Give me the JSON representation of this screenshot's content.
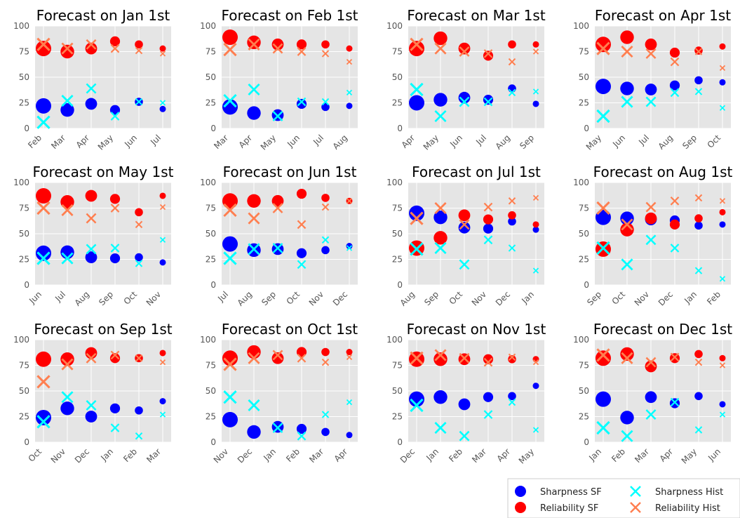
{
  "colors": {
    "sharpness_sf": "#0000ff",
    "reliability_sf": "#ff0000",
    "sharpness_hist": "#00ffff",
    "reliability_hist": "#ff7f50",
    "panel_bg": "#e5e5e5",
    "grid": "#ffffff",
    "tick_text": "#555555"
  },
  "legend": {
    "items": [
      {
        "key": "sharpness_sf",
        "label": "Sharpness SF",
        "marker": "circle"
      },
      {
        "key": "reliability_sf",
        "label": "Reliability SF",
        "marker": "circle"
      },
      {
        "key": "sharpness_hist",
        "label": "Sharpness Hist",
        "marker": "x"
      },
      {
        "key": "reliability_hist",
        "label": "Reliability Hist",
        "marker": "x"
      }
    ]
  },
  "chart_data": [
    {
      "type": "scatter",
      "title": "Forecast on Jan 1st",
      "ylim": [
        0,
        100
      ],
      "yticks": [
        0,
        25,
        50,
        75,
        100
      ],
      "categories": [
        "Feb",
        "Mar",
        "Apr",
        "May",
        "Jun",
        "Jul"
      ],
      "series": [
        {
          "name": "Sharpness SF",
          "values": [
            22,
            18,
            24,
            18,
            26,
            19
          ]
        },
        {
          "name": "Reliability SF",
          "values": [
            78,
            75,
            78,
            85,
            82,
            78
          ]
        },
        {
          "name": "Sharpness Hist",
          "values": [
            6,
            27,
            39,
            12,
            26,
            25
          ]
        },
        {
          "name": "Reliability Hist",
          "values": [
            82,
            78,
            82,
            78,
            76,
            73
          ]
        }
      ]
    },
    {
      "type": "scatter",
      "title": "Forecast on Feb 1st",
      "ylim": [
        0,
        100
      ],
      "yticks": [
        0,
        25,
        50,
        75,
        100
      ],
      "categories": [
        "Mar",
        "Apr",
        "May",
        "Jun",
        "Jul",
        "Aug"
      ],
      "series": [
        {
          "name": "Sharpness SF",
          "values": [
            21,
            15,
            13,
            24,
            21,
            22
          ]
        },
        {
          "name": "Reliability SF",
          "values": [
            89,
            84,
            82,
            82,
            82,
            78
          ]
        },
        {
          "name": "Sharpness Hist",
          "values": [
            27,
            38,
            12,
            26,
            26,
            35
          ]
        },
        {
          "name": "Reliability Hist",
          "values": [
            77,
            82,
            78,
            75,
            73,
            65
          ]
        }
      ]
    },
    {
      "type": "scatter",
      "title": "Forecast on Mar 1st",
      "ylim": [
        0,
        100
      ],
      "yticks": [
        0,
        25,
        50,
        75,
        100
      ],
      "categories": [
        "Apr",
        "May",
        "Jun",
        "Jul",
        "Aug",
        "Sep"
      ],
      "series": [
        {
          "name": "Sharpness SF",
          "values": [
            25,
            28,
            30,
            28,
            39,
            24
          ]
        },
        {
          "name": "Reliability SF",
          "values": [
            78,
            88,
            78,
            71,
            82,
            82
          ]
        },
        {
          "name": "Sharpness Hist",
          "values": [
            38,
            12,
            26,
            26,
            35,
            36
          ]
        },
        {
          "name": "Reliability Hist",
          "values": [
            82,
            78,
            75,
            73,
            65,
            75
          ]
        }
      ]
    },
    {
      "type": "scatter",
      "title": "Forecast on Apr 1st",
      "ylim": [
        0,
        100
      ],
      "yticks": [
        0,
        25,
        50,
        75,
        100
      ],
      "categories": [
        "May",
        "Jun",
        "Jul",
        "Aug",
        "Sep",
        "Oct"
      ],
      "series": [
        {
          "name": "Sharpness SF",
          "values": [
            41,
            39,
            38,
            42,
            47,
            45
          ]
        },
        {
          "name": "Reliability SF",
          "values": [
            82,
            89,
            82,
            74,
            76,
            80
          ]
        },
        {
          "name": "Sharpness Hist",
          "values": [
            12,
            26,
            26,
            35,
            36,
            20
          ]
        },
        {
          "name": "Reliability Hist",
          "values": [
            78,
            75,
            73,
            65,
            75,
            59
          ]
        }
      ]
    },
    {
      "type": "scatter",
      "title": "Forecast on May 1st",
      "ylim": [
        0,
        100
      ],
      "yticks": [
        0,
        25,
        50,
        75,
        100
      ],
      "categories": [
        "Jun",
        "Jul",
        "Aug",
        "Sep",
        "Oct",
        "Nov"
      ],
      "series": [
        {
          "name": "Sharpness SF",
          "values": [
            31,
            32,
            27,
            26,
            27,
            22
          ]
        },
        {
          "name": "Reliability SF",
          "values": [
            87,
            81,
            87,
            84,
            71,
            87
          ]
        },
        {
          "name": "Sharpness Hist",
          "values": [
            26,
            26,
            35,
            36,
            21,
            44
          ]
        },
        {
          "name": "Reliability Hist",
          "values": [
            75,
            73,
            65,
            75,
            59,
            76
          ]
        }
      ]
    },
    {
      "type": "scatter",
      "title": "Forecast on Jun 1st",
      "ylim": [
        0,
        100
      ],
      "yticks": [
        0,
        25,
        50,
        75,
        100
      ],
      "categories": [
        "Jul",
        "Aug",
        "Sep",
        "Oct",
        "Nov",
        "Dec"
      ],
      "series": [
        {
          "name": "Sharpness SF",
          "values": [
            40,
            34,
            35,
            31,
            34,
            38
          ]
        },
        {
          "name": "Reliability SF",
          "values": [
            82,
            82,
            82,
            89,
            85,
            82
          ]
        },
        {
          "name": "Sharpness Hist",
          "values": [
            26,
            35,
            36,
            20,
            44,
            36
          ]
        },
        {
          "name": "Reliability Hist",
          "values": [
            73,
            65,
            75,
            59,
            76,
            82
          ]
        }
      ]
    },
    {
      "type": "scatter",
      "title": "Forecast on Jul 1st",
      "ylim": [
        0,
        100
      ],
      "yticks": [
        0,
        25,
        50,
        75,
        100
      ],
      "categories": [
        "Aug",
        "Sep",
        "Oct",
        "Nov",
        "Dec",
        "Jan"
      ],
      "series": [
        {
          "name": "Sharpness SF",
          "values": [
            70,
            66,
            56,
            55,
            62,
            54
          ]
        },
        {
          "name": "Reliability SF",
          "values": [
            36,
            46,
            68,
            64,
            68,
            59
          ]
        },
        {
          "name": "Sharpness Hist",
          "values": [
            35,
            36,
            20,
            44,
            36,
            14
          ]
        },
        {
          "name": "Reliability Hist",
          "values": [
            65,
            75,
            59,
            76,
            82,
            85
          ]
        }
      ]
    },
    {
      "type": "scatter",
      "title": "Forecast on Aug 1st",
      "ylim": [
        0,
        100
      ],
      "yticks": [
        0,
        25,
        50,
        75,
        100
      ],
      "categories": [
        "Sep",
        "Oct",
        "Nov",
        "Dec",
        "Jan",
        "Feb"
      ],
      "series": [
        {
          "name": "Sharpness SF",
          "values": [
            66,
            65,
            64,
            63,
            58,
            59
          ]
        },
        {
          "name": "Reliability SF",
          "values": [
            35,
            54,
            65,
            59,
            65,
            71
          ]
        },
        {
          "name": "Sharpness Hist",
          "values": [
            36,
            20,
            44,
            36,
            14,
            6
          ]
        },
        {
          "name": "Reliability Hist",
          "values": [
            75,
            59,
            76,
            82,
            85,
            82
          ]
        }
      ]
    },
    {
      "type": "scatter",
      "title": "Forecast on Sep 1st",
      "ylim": [
        0,
        100
      ],
      "yticks": [
        0,
        25,
        50,
        75,
        100
      ],
      "categories": [
        "Oct",
        "Nov",
        "Dec",
        "Jan",
        "Feb",
        "Mar"
      ],
      "series": [
        {
          "name": "Sharpness SF",
          "values": [
            24,
            33,
            25,
            33,
            31,
            40
          ]
        },
        {
          "name": "Reliability SF",
          "values": [
            81,
            81,
            87,
            82,
            82,
            87
          ]
        },
        {
          "name": "Sharpness Hist",
          "values": [
            20,
            44,
            36,
            14,
            6,
            27
          ]
        },
        {
          "name": "Reliability Hist",
          "values": [
            59,
            76,
            82,
            85,
            82,
            78
          ]
        }
      ]
    },
    {
      "type": "scatter",
      "title": "Forecast on Oct 1st",
      "ylim": [
        0,
        100
      ],
      "yticks": [
        0,
        25,
        50,
        75,
        100
      ],
      "categories": [
        "Nov",
        "Dec",
        "Jan",
        "Feb",
        "Mar",
        "Apr"
      ],
      "series": [
        {
          "name": "Sharpness SF",
          "values": [
            22,
            10,
            15,
            13,
            10,
            7
          ]
        },
        {
          "name": "Reliability SF",
          "values": [
            82,
            88,
            82,
            88,
            88,
            88
          ]
        },
        {
          "name": "Sharpness Hist",
          "values": [
            44,
            36,
            14,
            6,
            27,
            39
          ]
        },
        {
          "name": "Reliability Hist",
          "values": [
            76,
            82,
            85,
            82,
            78,
            83
          ]
        }
      ]
    },
    {
      "type": "scatter",
      "title": "Forecast on Nov 1st",
      "ylim": [
        0,
        100
      ],
      "yticks": [
        0,
        25,
        50,
        75,
        100
      ],
      "categories": [
        "Dec",
        "Jan",
        "Feb",
        "Mar",
        "Apr",
        "May"
      ],
      "series": [
        {
          "name": "Sharpness SF",
          "values": [
            42,
            44,
            37,
            44,
            45,
            55
          ]
        },
        {
          "name": "Reliability SF",
          "values": [
            81,
            81,
            81,
            81,
            81,
            81
          ]
        },
        {
          "name": "Sharpness Hist",
          "values": [
            36,
            14,
            6,
            27,
            39,
            12
          ]
        },
        {
          "name": "Reliability Hist",
          "values": [
            82,
            85,
            82,
            78,
            83,
            78
          ]
        }
      ]
    },
    {
      "type": "scatter",
      "title": "Forecast on Dec 1st",
      "ylim": [
        0,
        100
      ],
      "yticks": [
        0,
        25,
        50,
        75,
        100
      ],
      "categories": [
        "Jan",
        "Feb",
        "Mar",
        "Apr",
        "May",
        "Jun"
      ],
      "series": [
        {
          "name": "Sharpness SF",
          "values": [
            42,
            24,
            44,
            38,
            45,
            37
          ]
        },
        {
          "name": "Reliability SF",
          "values": [
            82,
            86,
            74,
            82,
            86,
            82
          ]
        },
        {
          "name": "Sharpness Hist",
          "values": [
            14,
            6,
            27,
            39,
            12,
            27
          ]
        },
        {
          "name": "Reliability Hist",
          "values": [
            85,
            82,
            78,
            83,
            78,
            75
          ]
        }
      ]
    }
  ]
}
